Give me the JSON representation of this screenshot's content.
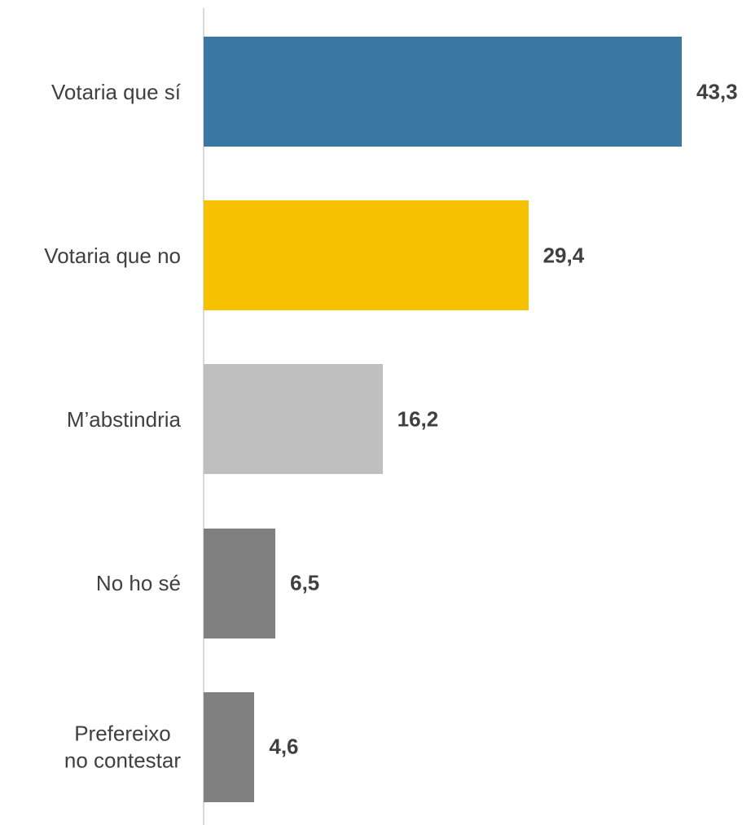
{
  "chart_data": {
    "type": "bar",
    "orientation": "horizontal",
    "categories": [
      "Votaria que sí",
      "Votaria que no",
      "M’abstindria",
      "No ho sé",
      "Prefereixo\nno contestar"
    ],
    "values": [
      43.3,
      29.4,
      16.2,
      6.5,
      4.6
    ],
    "value_labels": [
      "43,3",
      "29,4",
      "16,2",
      "6,5",
      "4,6"
    ],
    "colors": [
      "#3a78a1",
      "#f5c100",
      "#bfbfbf",
      "#808080",
      "#808080"
    ]
  }
}
